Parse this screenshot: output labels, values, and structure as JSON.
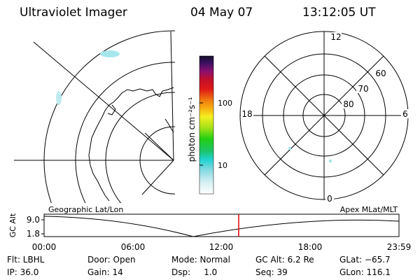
{
  "header": {
    "title": "Ultraviolet Imager",
    "date": "04 May 07",
    "time": "13:12:05 UT"
  },
  "colorbar": {
    "unit_label": "photon cm⁻²s⁻¹",
    "ticks": [
      "100",
      "10"
    ]
  },
  "polar_plot": {
    "mlt_labels": {
      "top": "12",
      "bottom": "0",
      "left": "18",
      "right": "6"
    },
    "lat_labels": [
      "60",
      "70",
      "80"
    ]
  },
  "timeline": {
    "y_axis_title": "GC Alt",
    "y_ticks": [
      "9.0",
      "1.8"
    ],
    "left_caption": "Geographic Lat/Lon",
    "right_caption": "Apex MLat/MLT",
    "x_ticks": [
      "00:00",
      "06:00",
      "12:00",
      "18:00",
      "23:59"
    ],
    "current_time_marker": "13:12"
  },
  "status": {
    "flt": "Flt: LBHL",
    "ip": "IP: 36.0",
    "door": "Door: Open",
    "gain": "Gain: 14",
    "mode": "Mode: Normal",
    "dsp": "Dsp:     1.0",
    "gc_alt": "GC Alt: 6.2 Re",
    "seq": "Seq: 39",
    "glat": "GLat: −65.7",
    "glon": "GLon: 116.1"
  },
  "colors": {
    "background": "#ffffff",
    "lines": "#000000",
    "time_marker": "#e00000",
    "aurora_patch": "#a8e6ee"
  }
}
